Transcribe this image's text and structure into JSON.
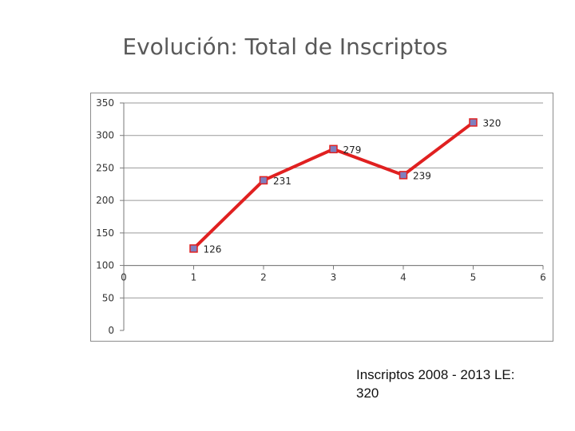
{
  "slide": {
    "title": "Evolución: Total de Inscriptos",
    "caption_line1": "Inscriptos 2008 - 2013 LE:",
    "caption_line2": "320"
  },
  "chart_data": {
    "type": "line",
    "title": "",
    "xlabel": "",
    "ylabel": "",
    "x": [
      1,
      2,
      3,
      4,
      5
    ],
    "series": [
      {
        "values": [
          126,
          231,
          279,
          239,
          320
        ],
        "color": "#e02020",
        "marker_color": "#7f7fbf"
      }
    ],
    "data_labels": [
      "126",
      "231",
      "279",
      "239",
      "320"
    ],
    "x_ticks": [
      "0",
      "1",
      "2",
      "3",
      "4",
      "5",
      "6"
    ],
    "y_ticks": [
      "0",
      "50",
      "100",
      "150",
      "200",
      "250",
      "300",
      "350"
    ],
    "xlim": [
      0,
      6
    ],
    "ylim": [
      0,
      350
    ],
    "x_axis_crosses_at": 100,
    "grid": "horizontal",
    "legend": "none"
  }
}
